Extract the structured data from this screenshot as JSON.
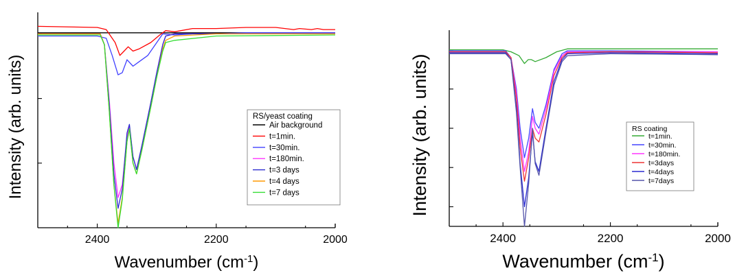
{
  "chart_data": [
    {
      "type": "line",
      "xlabel": "Wavenumber (cm",
      "xlabel_sup": "-1",
      "xlabel_tail": ")",
      "ylabel": "Intensity (arb. units)",
      "xlim": [
        2500,
        2000
      ],
      "ylim": [
        0,
        1
      ],
      "x_ticks": [
        2400,
        2200,
        2000
      ],
      "x_tick_labels": [
        "2400",
        "2200",
        "2000"
      ],
      "y_tick_values": [
        0.3,
        0.6,
        0.9
      ],
      "y_tick_labels_shown": false,
      "grid": false,
      "legend_title": "RS/yeast coating",
      "legend_position": "lower-right",
      "series": [
        {
          "name": "Air background",
          "color": "#000000",
          "x": [
            2500,
            2390,
            2300,
            2200,
            2100,
            2000
          ],
          "y": [
            0.905,
            0.905,
            0.905,
            0.905,
            0.905,
            0.905
          ]
        },
        {
          "name": "t=1min.",
          "color": "#ff0000",
          "x": [
            2500,
            2400,
            2385,
            2370,
            2362,
            2355,
            2348,
            2340,
            2330,
            2310,
            2295,
            2285,
            2270,
            2240,
            2200,
            2150,
            2100,
            2070,
            2060,
            2040,
            2030,
            2020,
            2000
          ],
          "y": [
            0.935,
            0.93,
            0.92,
            0.86,
            0.8,
            0.82,
            0.84,
            0.82,
            0.83,
            0.86,
            0.895,
            0.915,
            0.91,
            0.925,
            0.925,
            0.93,
            0.93,
            0.92,
            0.925,
            0.92,
            0.925,
            0.92,
            0.92
          ]
        },
        {
          "name": "t=30min.",
          "color": "#4040ff",
          "x": [
            2500,
            2400,
            2385,
            2375,
            2365,
            2358,
            2350,
            2340,
            2330,
            2315,
            2300,
            2290,
            2270,
            2240,
            2200,
            2150,
            2100,
            2000
          ],
          "y": [
            0.89,
            0.89,
            0.88,
            0.8,
            0.71,
            0.72,
            0.78,
            0.75,
            0.77,
            0.8,
            0.86,
            0.9,
            0.895,
            0.9,
            0.9,
            0.905,
            0.905,
            0.905
          ]
        },
        {
          "name": "t=180min.",
          "color": "#ff33ff",
          "x": [
            2500,
            2395,
            2388,
            2380,
            2372,
            2365,
            2358,
            2350,
            2346,
            2340,
            2334,
            2325,
            2310,
            2300,
            2290,
            2285,
            2270,
            2200,
            2000
          ],
          "y": [
            0.9,
            0.9,
            0.85,
            0.6,
            0.3,
            0.14,
            0.2,
            0.42,
            0.47,
            0.33,
            0.27,
            0.38,
            0.58,
            0.72,
            0.85,
            0.89,
            0.9,
            0.9,
            0.9
          ]
        },
        {
          "name": "t=3 days",
          "color": "#2a2ad0",
          "x": [
            2500,
            2395,
            2388,
            2380,
            2372,
            2365,
            2358,
            2350,
            2346,
            2340,
            2334,
            2325,
            2310,
            2300,
            2290,
            2285,
            2270,
            2200,
            2000
          ],
          "y": [
            0.9,
            0.9,
            0.85,
            0.58,
            0.25,
            0.09,
            0.18,
            0.44,
            0.48,
            0.33,
            0.27,
            0.38,
            0.58,
            0.72,
            0.85,
            0.89,
            0.9,
            0.9,
            0.9
          ]
        },
        {
          "name": "t=4 days",
          "color": "#ff9900",
          "x": [
            2500,
            2395,
            2388,
            2380,
            2372,
            2365,
            2358,
            2350,
            2346,
            2340,
            2334,
            2325,
            2310,
            2300,
            2290,
            2285,
            2270,
            2200,
            2000
          ],
          "y": [
            0.9,
            0.9,
            0.85,
            0.55,
            0.2,
            0.02,
            0.14,
            0.4,
            0.46,
            0.3,
            0.25,
            0.36,
            0.56,
            0.7,
            0.83,
            0.87,
            0.89,
            0.9,
            0.9
          ]
        },
        {
          "name": "t=7 days",
          "color": "#33dd33",
          "x": [
            2500,
            2395,
            2388,
            2380,
            2372,
            2365,
            2358,
            2350,
            2346,
            2340,
            2334,
            2325,
            2310,
            2300,
            2290,
            2285,
            2270,
            2200,
            2000
          ],
          "y": [
            0.895,
            0.895,
            0.85,
            0.55,
            0.2,
            0.0,
            0.13,
            0.4,
            0.46,
            0.3,
            0.25,
            0.36,
            0.56,
            0.7,
            0.82,
            0.86,
            0.87,
            0.89,
            0.895
          ]
        }
      ]
    },
    {
      "type": "line",
      "xlabel": "Wavenumber (cm",
      "xlabel_sup": "-1",
      "xlabel_tail": ")",
      "ylabel": "Intensity (arb. units)",
      "xlim": [
        2500,
        2000
      ],
      "ylim": [
        0,
        1
      ],
      "x_ticks": [
        2400,
        2200,
        2000
      ],
      "x_tick_labels": [
        "2400",
        "2200",
        "2000"
      ],
      "y_tick_values": [
        0.1,
        0.3,
        0.5,
        0.7,
        0.9
      ],
      "y_tick_labels_shown": false,
      "grid": false,
      "legend_title": "RS coating",
      "legend_position": "lower-right",
      "series": [
        {
          "name": "t=1min.",
          "color": "#33aa33",
          "x": [
            2500,
            2400,
            2385,
            2370,
            2360,
            2353,
            2347,
            2340,
            2320,
            2300,
            2280,
            2200,
            2000
          ],
          "y": [
            0.9,
            0.9,
            0.89,
            0.87,
            0.83,
            0.85,
            0.85,
            0.84,
            0.86,
            0.89,
            0.905,
            0.905,
            0.905
          ]
        },
        {
          "name": "t=30min.",
          "color": "#4444ff",
          "x": [
            2500,
            2395,
            2385,
            2375,
            2368,
            2360,
            2352,
            2345,
            2340,
            2333,
            2320,
            2305,
            2290,
            2280,
            2200,
            2000
          ],
          "y": [
            0.895,
            0.895,
            0.86,
            0.7,
            0.5,
            0.35,
            0.45,
            0.6,
            0.53,
            0.5,
            0.62,
            0.8,
            0.88,
            0.895,
            0.895,
            0.89
          ]
        },
        {
          "name": "t=180min.",
          "color": "#ff33ff",
          "x": [
            2500,
            2395,
            2385,
            2375,
            2368,
            2360,
            2352,
            2345,
            2340,
            2333,
            2320,
            2305,
            2290,
            2280,
            2200,
            2000
          ],
          "y": [
            0.89,
            0.89,
            0.86,
            0.68,
            0.45,
            0.28,
            0.38,
            0.56,
            0.5,
            0.47,
            0.6,
            0.79,
            0.87,
            0.89,
            0.89,
            0.89
          ]
        },
        {
          "name": "t=3days",
          "color": "#ee3333",
          "x": [
            2500,
            2395,
            2385,
            2375,
            2368,
            2360,
            2352,
            2345,
            2340,
            2333,
            2320,
            2305,
            2290,
            2280,
            2200,
            2000
          ],
          "y": [
            0.89,
            0.89,
            0.86,
            0.65,
            0.4,
            0.23,
            0.35,
            0.5,
            0.45,
            0.43,
            0.57,
            0.77,
            0.86,
            0.885,
            0.89,
            0.885
          ]
        },
        {
          "name": "t=4days",
          "color": "#2a2ad0",
          "x": [
            2500,
            2395,
            2385,
            2375,
            2368,
            2360,
            2352,
            2345,
            2340,
            2333,
            2320,
            2305,
            2290,
            2280,
            2200,
            2000
          ],
          "y": [
            0.885,
            0.885,
            0.85,
            0.6,
            0.32,
            0.1,
            0.25,
            0.48,
            0.33,
            0.28,
            0.5,
            0.74,
            0.85,
            0.88,
            0.885,
            0.88
          ]
        },
        {
          "name": "t=7days",
          "color": "#5555aa",
          "x": [
            2500,
            2395,
            2385,
            2375,
            2368,
            2360,
            2352,
            2345,
            2340,
            2333,
            2320,
            2305,
            2290,
            2280,
            2200,
            2000
          ],
          "y": [
            0.88,
            0.88,
            0.85,
            0.58,
            0.3,
            0.0,
            0.22,
            0.5,
            0.32,
            0.26,
            0.48,
            0.72,
            0.84,
            0.87,
            0.88,
            0.875
          ]
        }
      ]
    }
  ]
}
